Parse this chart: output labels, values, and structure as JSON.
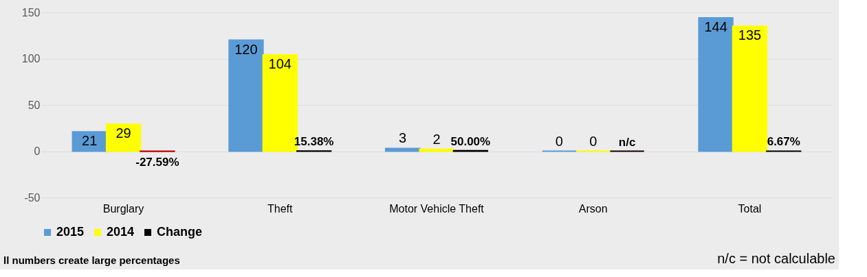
{
  "chart_data": {
    "type": "bar",
    "categories": [
      "Burglary",
      "Theft",
      "Motor Vehicle Theft",
      "Arson",
      "Total"
    ],
    "series": [
      {
        "name": "2015",
        "color": "#5b9bd5",
        "values": [
          21,
          120,
          3,
          0,
          144
        ],
        "value_labels": [
          "21",
          "120",
          "3",
          "0",
          "144"
        ]
      },
      {
        "name": "2014",
        "color": "#ffff00",
        "values": [
          29,
          104,
          2,
          0,
          135
        ],
        "value_labels": [
          "29",
          "104",
          "2",
          "0",
          "135"
        ]
      },
      {
        "name": "Change",
        "color": "#000000",
        "colors": [
          "#c00000",
          "#000000",
          "#000000",
          "#1a0000",
          "#000000"
        ],
        "values": [
          -0.2759,
          0.1538,
          0.5,
          0,
          0.0667
        ],
        "value_labels": [
          "-27.59%",
          "15.38%",
          "50.00%",
          "n/c",
          "6.67%"
        ]
      }
    ],
    "ylim": [
      -50,
      150
    ],
    "yticks": [
      -50,
      0,
      50,
      100,
      150
    ],
    "grid": "y",
    "legend": "bottom",
    "annotations": [
      "ll numbers create large percentages",
      "n/c = not calculable"
    ]
  }
}
